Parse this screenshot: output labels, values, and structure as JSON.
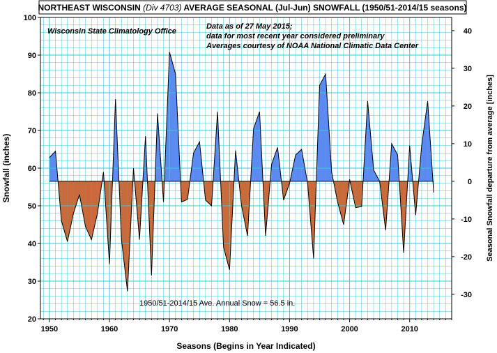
{
  "chart_data": {
    "type": "area",
    "title_prefix": "NORTHEAST WISCONSIN ",
    "title_div": "(Div 4703)",
    "title_suffix": " AVERAGE SEASONAL (Jul-Jun) SNOWFALL (1950/51-2014/15 seasons)",
    "source_label": "Wisconsin State Climatology Office",
    "note_lines": [
      "Data as of 27 May 2015;",
      "data for most recent year considered preliminary",
      "Averages courtesy of NOAA National Climatic Data Center"
    ],
    "average_label": "1950/51-2014/15 Ave. Annual Snow = 56.5 in.",
    "xlabel": "Seasons (Begins in Year Indicated)",
    "ylabel": "Snowfall (inches)",
    "y2label": "Seasonal Snowfall departure from average [inches]",
    "average": 56.5,
    "xlim": [
      1948.5,
      2017
    ],
    "ylim": [
      20,
      100
    ],
    "x_ticks": [
      1950,
      1960,
      1970,
      1980,
      1990,
      2000,
      2010
    ],
    "y_ticks": [
      20,
      30,
      40,
      50,
      60,
      70,
      80,
      90,
      100
    ],
    "y2_ticks": [
      -30,
      -20,
      -10,
      0,
      10,
      20,
      30,
      40
    ],
    "colors": {
      "above": "#5b8bf0",
      "below": "#c86a3a",
      "grid": "#36c8dc",
      "line": "#000000"
    },
    "x": [
      1950,
      1951,
      1952,
      1953,
      1954,
      1955,
      1956,
      1957,
      1958,
      1959,
      1960,
      1961,
      1962,
      1963,
      1964,
      1965,
      1966,
      1967,
      1968,
      1969,
      1970,
      1971,
      1972,
      1973,
      1974,
      1975,
      1976,
      1977,
      1978,
      1979,
      1980,
      1981,
      1982,
      1983,
      1984,
      1985,
      1986,
      1987,
      1988,
      1989,
      1990,
      1991,
      1992,
      1993,
      1994,
      1995,
      1996,
      1997,
      1998,
      1999,
      2000,
      2001,
      2002,
      2003,
      2004,
      2005,
      2006,
      2007,
      2008,
      2009,
      2010,
      2011,
      2012,
      2013,
      2014
    ],
    "values": [
      62.8,
      64.5,
      46,
      40.5,
      48,
      53,
      44.5,
      41,
      48,
      59,
      34.5,
      78.3,
      41,
      27.3,
      60,
      41,
      68.5,
      31.5,
      74.5,
      51,
      90.8,
      85,
      51,
      51.7,
      64,
      67,
      51.5,
      50,
      75,
      39,
      33,
      64.7,
      50,
      42,
      70.5,
      75,
      42,
      61,
      65.5,
      51.5,
      56,
      63.5,
      65,
      56,
      36,
      82,
      85,
      59,
      51,
      45,
      57,
      49.5,
      49.8,
      77.8,
      59.5,
      56.5,
      43.5,
      66.5,
      63.5,
      37.5,
      66,
      47.5,
      66,
      77.8,
      53.5
    ]
  }
}
